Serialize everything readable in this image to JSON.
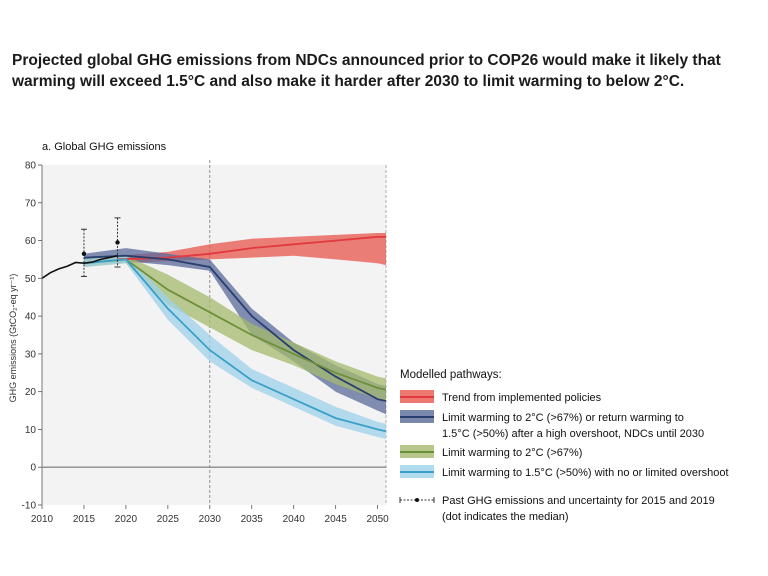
{
  "headline": {
    "line1": "Projected global GHG emissions from NDCs announced prior to COP26 would make it likely that",
    "line2": "warming will exceed 1.5°C and also make it harder after 2030 to limit warming to below 2°C."
  },
  "chart_data": {
    "type": "line",
    "title": "a. Global GHG emissions",
    "ylabel": "GHG emissions (GtCO₂-eq yr⁻¹)",
    "xlabel": "",
    "xlim": [
      2010,
      2051
    ],
    "ylim": [
      -10,
      80
    ],
    "x_ticks": [
      2010,
      2015,
      2020,
      2025,
      2030,
      2035,
      2040,
      2045,
      2050
    ],
    "y_ticks": [
      -10,
      0,
      10,
      20,
      30,
      40,
      50,
      60,
      70,
      80
    ],
    "reference_lines_x": [
      2030
    ],
    "zero_line": 0,
    "historical": {
      "x": [
        2010,
        2011,
        2012,
        2013,
        2014,
        2015,
        2016,
        2017,
        2018,
        2019
      ],
      "y": [
        50,
        51.5,
        52.5,
        53.2,
        54.2,
        54.0,
        54.3,
        55.0,
        55.5,
        56.0
      ]
    },
    "uncertainty": [
      {
        "x": 2015,
        "median": 56.5,
        "low": 50.5,
        "high": 63
      },
      {
        "x": 2019,
        "median": 59.5,
        "low": 53,
        "high": 66
      }
    ],
    "legend": {
      "heading": "Modelled pathways:",
      "past_label_1": "Past GHG emissions and uncertainty for 2015 and 2019",
      "past_label_2": "(dot indicates the median)"
    },
    "series": [
      {
        "name": "Trend from implemented policies",
        "label_lines": [
          "Trend from implemented policies"
        ],
        "line_color": "#e03a3e",
        "band_color": "#e8554e",
        "x": [
          2019,
          2025,
          2030,
          2035,
          2040,
          2045,
          2050,
          2051
        ],
        "y": [
          55,
          55.5,
          56.5,
          58,
          59,
          60,
          61,
          61
        ],
        "upper": [
          56,
          57,
          59,
          60.5,
          61,
          61.5,
          62,
          62
        ],
        "lower": [
          54,
          54.5,
          55,
          55.5,
          56,
          55,
          54,
          53.5
        ]
      },
      {
        "name": "Limit warming to 2°C (>67%) or return warming to 1.5°C (>50%) after a high overshoot, NDCs until 2030",
        "label_lines": [
          "Limit warming to 2°C (>67%) or return warming to",
          "1.5°C (>50%) after a high overshoot, NDCs until 2030"
        ],
        "line_color": "#2a3f6e",
        "band_color": "#5a6a9a",
        "x": [
          2015,
          2020,
          2025,
          2030,
          2035,
          2040,
          2045,
          2050,
          2051
        ],
        "y": [
          55.5,
          56,
          55,
          53,
          40,
          31,
          24,
          18,
          17.5
        ],
        "upper": [
          56.5,
          58,
          56.5,
          55,
          42,
          33,
          27,
          22,
          21.5
        ],
        "lower": [
          54,
          54.5,
          53.5,
          52,
          35,
          28,
          20,
          15,
          14
        ]
      },
      {
        "name": "Limit warming to 2°C (>67%)",
        "label_lines": [
          "Limit warming to 2°C (>67%)"
        ],
        "line_color": "#6e8f3a",
        "band_color": "#a4b96c",
        "x": [
          2015,
          2020,
          2025,
          2030,
          2035,
          2040,
          2045,
          2050,
          2051
        ],
        "y": [
          54,
          55,
          47,
          41,
          35,
          30,
          25,
          21,
          20.5
        ],
        "upper": [
          55,
          56,
          51,
          45,
          38,
          33,
          28,
          24,
          23.5
        ],
        "lower": [
          53,
          54,
          43,
          37,
          31,
          27,
          22,
          18,
          17
        ]
      },
      {
        "name": "Limit warming to 1.5°C (>50%) with no or limited overshoot",
        "label_lines": [
          "Limit warming to 1.5°C (>50%) with no or limited overshoot"
        ],
        "line_color": "#3aa0c8",
        "band_color": "#9dd2ea",
        "x": [
          2015,
          2020,
          2025,
          2030,
          2035,
          2040,
          2045,
          2050,
          2051
        ],
        "y": [
          54,
          55,
          42,
          31,
          23,
          18,
          13,
          10,
          9.5
        ],
        "upper": [
          55,
          56,
          45,
          35,
          26,
          21,
          16,
          12,
          11.5
        ],
        "lower": [
          53,
          54,
          39,
          28,
          21,
          16,
          11,
          8,
          7.5
        ]
      }
    ]
  }
}
